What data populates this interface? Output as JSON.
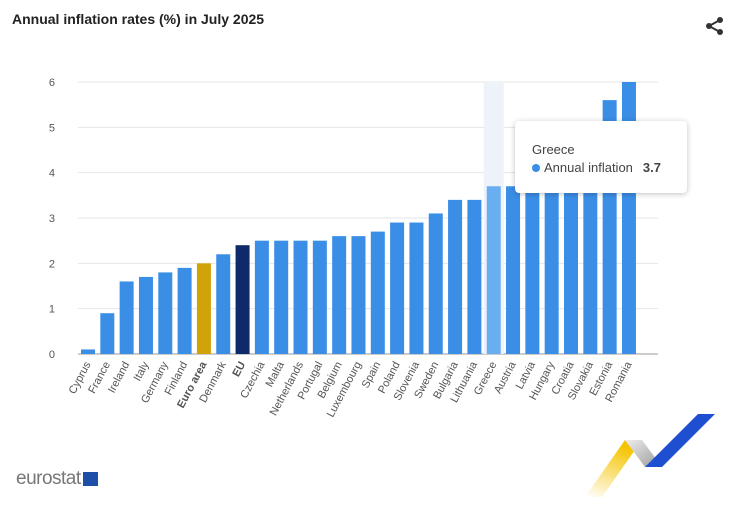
{
  "title": "Annual inflation rates (%) in July 2025",
  "tooltip": {
    "country": "Greece",
    "series": "Annual inflation",
    "value": "3.7"
  },
  "logo": "eurostat",
  "colors": {
    "default": "#3a8ee6",
    "hover": "#6aaef2",
    "euro_area": "#d1a309",
    "eu": "#0f2a6b"
  },
  "icons": {
    "share": "share-icon"
  },
  "chart_data": {
    "type": "bar",
    "title": "Annual inflation rates (%) in July 2025",
    "xlabel": "",
    "ylabel": "",
    "ylim": [
      0,
      6
    ],
    "yticks": [
      0,
      1,
      2,
      3,
      4,
      5,
      6
    ],
    "grid": true,
    "legend": "none",
    "categories": [
      "Cyprus",
      "France",
      "Ireland",
      "Italy",
      "Germany",
      "Finland",
      "Euro area",
      "Denmark",
      "EU",
      "Czechia",
      "Malta",
      "Netherlands",
      "Portugal",
      "Belgium",
      "Luxembourg",
      "Spain",
      "Poland",
      "Slovenia",
      "Sweden",
      "Bulgaria",
      "Lithuania",
      "Greece",
      "Austria",
      "Latvia",
      "Hungary",
      "Croatia",
      "Slovakia",
      "Estonia",
      "Romania"
    ],
    "values": [
      0.1,
      0.9,
      1.6,
      1.7,
      1.8,
      1.9,
      2.0,
      2.2,
      2.4,
      2.5,
      2.5,
      2.5,
      2.5,
      2.6,
      2.6,
      2.7,
      2.9,
      2.9,
      3.1,
      3.4,
      3.4,
      3.7,
      3.7,
      4.0,
      4.3,
      4.5,
      4.6,
      5.6,
      6.0
    ],
    "bold_categories": [
      "Euro area",
      "EU"
    ],
    "highlighted": "Greece"
  }
}
